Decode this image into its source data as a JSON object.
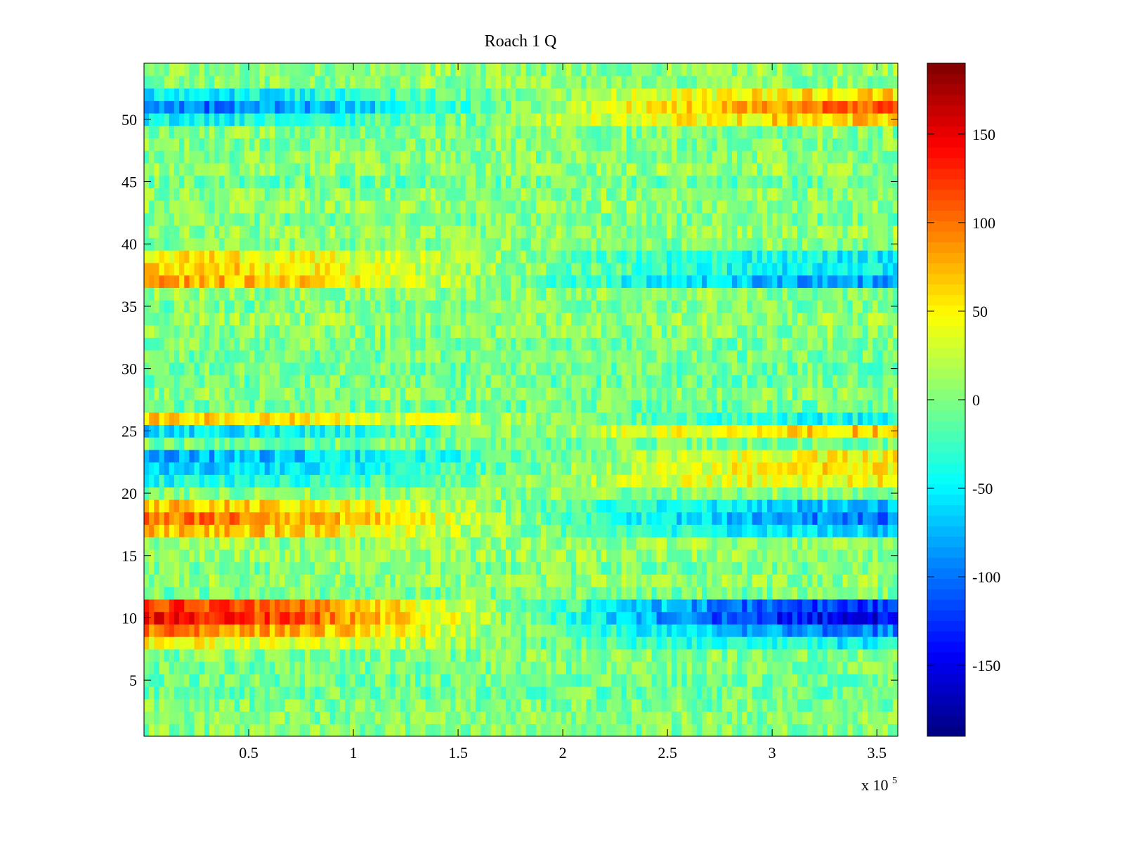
{
  "chart_data": {
    "type": "heatmap",
    "title": "Roach 1 Q",
    "xlabel": "",
    "ylabel": "",
    "x_multiplier_label": {
      "base": "x 10",
      "exponent": "5"
    },
    "xlim": [
      0,
      3.6
    ],
    "ylim": [
      0.5,
      54.5
    ],
    "x_ticks": [
      0.5,
      1,
      1.5,
      2,
      2.5,
      3,
      3.5
    ],
    "x_tick_labels": [
      "0.5",
      "1",
      "1.5",
      "2",
      "2.5",
      "3",
      "3.5"
    ],
    "y_ticks": [
      5,
      10,
      15,
      20,
      25,
      30,
      35,
      40,
      45,
      50
    ],
    "y_tick_labels": [
      "5",
      "10",
      "15",
      "20",
      "25",
      "30",
      "35",
      "40",
      "45",
      "50"
    ],
    "rows": 54,
    "colormap": "jet",
    "clim": [
      -190,
      190
    ],
    "colorbar": {
      "ticks": [
        -150,
        -100,
        -50,
        0,
        50,
        100,
        150
      ],
      "tick_labels": [
        "-150",
        "-100",
        "-50",
        "0",
        "50",
        "100",
        "150"
      ],
      "location": "right"
    },
    "grid": false,
    "row_profiles": [
      {
        "row": 52,
        "start": -55,
        "end": 60
      },
      {
        "row": 51,
        "start": -95,
        "end": 110
      },
      {
        "row": 50,
        "start": -55,
        "end": 60
      },
      {
        "row": 39,
        "start": 55,
        "end": -45
      },
      {
        "row": 38,
        "start": 60,
        "end": -55
      },
      {
        "row": 37,
        "start": 75,
        "end": -90
      },
      {
        "row": 26,
        "start": 70,
        "end": -35
      },
      {
        "row": 25,
        "start": -60,
        "end": 65
      },
      {
        "row": 23,
        "start": -70,
        "end": 55
      },
      {
        "row": 22,
        "start": -65,
        "end": 55
      },
      {
        "row": 21,
        "start": -45,
        "end": 45
      },
      {
        "row": 19,
        "start": 75,
        "end": -70
      },
      {
        "row": 18,
        "start": 95,
        "end": -105
      },
      {
        "row": 17,
        "start": 70,
        "end": -70
      },
      {
        "row": 11,
        "start": 125,
        "end": -120
      },
      {
        "row": 10,
        "start": 140,
        "end": -150
      },
      {
        "row": 9,
        "start": 95,
        "end": -95
      },
      {
        "row": 8,
        "start": 50,
        "end": -45
      }
    ]
  }
}
